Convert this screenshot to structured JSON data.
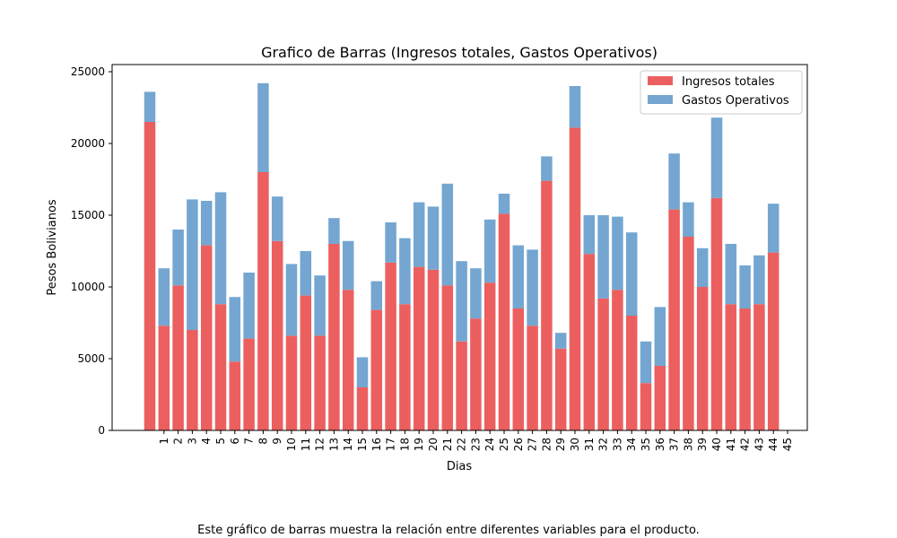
{
  "chart_data": {
    "type": "bar",
    "stacked": true,
    "title": "Grafico de Barras (Ingresos totales, Gastos Operativos)",
    "xlabel": "Dias",
    "ylabel": "Pesos Bolivianos",
    "ylim": [
      0,
      25000
    ],
    "yticks": [
      0,
      5000,
      10000,
      15000,
      20000,
      25000
    ],
    "categories": [
      "1",
      "2",
      "3",
      "4",
      "5",
      "6",
      "7",
      "8",
      "9",
      "10",
      "11",
      "12",
      "13",
      "14",
      "15",
      "16",
      "17",
      "18",
      "19",
      "20",
      "21",
      "22",
      "23",
      "24",
      "25",
      "26",
      "27",
      "28",
      "29",
      "30",
      "31",
      "32",
      "33",
      "34",
      "35",
      "36",
      "37",
      "38",
      "39",
      "40",
      "41",
      "42",
      "43",
      "44",
      "45"
    ],
    "grid": false,
    "legend": "top-right",
    "series": [
      {
        "name": "Ingresos totales",
        "color": "#ec5f5f",
        "values": [
          21500,
          7300,
          10100,
          7000,
          12900,
          8800,
          4800,
          6400,
          18000,
          13200,
          6600,
          9400,
          6600,
          13000,
          9800,
          3000,
          8400,
          11700,
          8800,
          11400,
          11200,
          10100,
          6200,
          7800,
          10300,
          15100,
          8500,
          7300,
          17400,
          5700,
          21100,
          12300,
          9200,
          9800,
          8000,
          3300,
          4500,
          15400,
          13500,
          10000,
          16200,
          8800,
          8500,
          8800,
          12400
        ]
      },
      {
        "name": "Gastos Operativos",
        "color": "#74a6d1",
        "values": [
          2100,
          4000,
          3900,
          9100,
          3100,
          7800,
          4500,
          4600,
          6200,
          3100,
          5000,
          3100,
          4200,
          1800,
          3400,
          2100,
          2000,
          2800,
          4600,
          4500,
          4400,
          7100,
          5600,
          3500,
          4400,
          1400,
          4400,
          5300,
          1700,
          1100,
          2900,
          2700,
          5800,
          5100,
          5800,
          2900,
          4100,
          3900,
          2400,
          2700,
          5600,
          4200,
          3000,
          3400,
          3400
        ]
      }
    ]
  },
  "caption": "Este gráfico de barras muestra la relación entre diferentes variables para el producto."
}
